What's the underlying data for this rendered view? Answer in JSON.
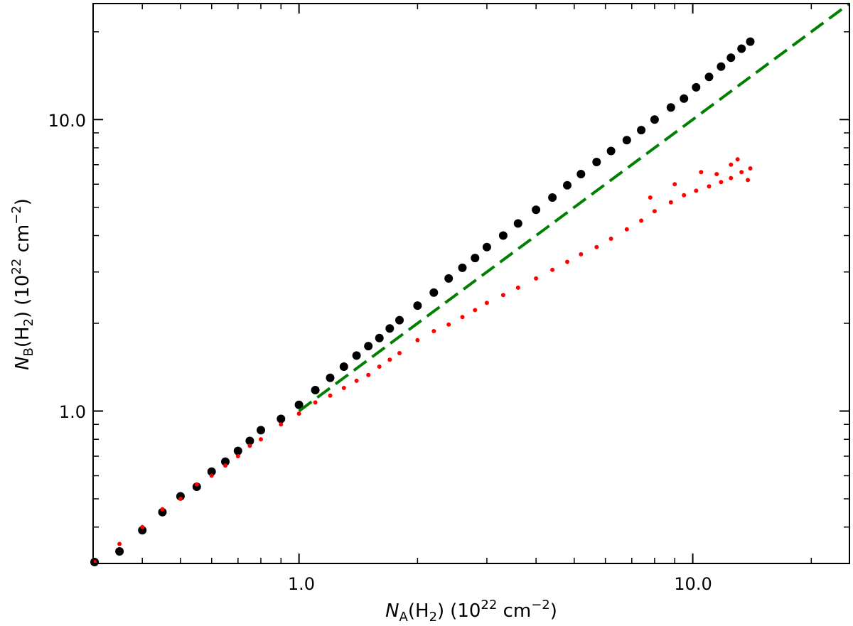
{
  "chart_data": {
    "type": "scatter",
    "x_scale": "log",
    "y_scale": "log",
    "xlim": [
      0.3,
      25
    ],
    "ylim": [
      0.3,
      25
    ],
    "x_major_ticks": [
      1.0,
      10.0
    ],
    "x_tick_labels": [
      "1.0",
      "10.0"
    ],
    "y_major_ticks": [
      1.0,
      10.0
    ],
    "y_tick_labels": [
      "1.0",
      "10.0"
    ],
    "xlabel": {
      "symbol": "N",
      "subscript": "A",
      "species": "(H",
      "species_sub": "2",
      "species_end": ")",
      "unit_open": "(10",
      "unit_exp": "22",
      "unit_mid": " cm",
      "unit_exp2": "−2",
      "unit_close": ")"
    },
    "ylabel": {
      "symbol": "N",
      "subscript": "B",
      "species": "(H",
      "species_sub": "2",
      "species_end": ")",
      "unit_open": "(10",
      "unit_exp": "22",
      "unit_mid": " cm",
      "unit_exp2": "−2",
      "unit_close": ")"
    },
    "grid": false,
    "legend": "none",
    "series": [
      {
        "color": "#000000",
        "marker": "large-circle",
        "points": [
          [
            0.3,
            0.3
          ],
          [
            0.35,
            0.33
          ],
          [
            0.4,
            0.39
          ],
          [
            0.45,
            0.45
          ],
          [
            0.5,
            0.51
          ],
          [
            0.55,
            0.55
          ],
          [
            0.6,
            0.62
          ],
          [
            0.65,
            0.67
          ],
          [
            0.7,
            0.73
          ],
          [
            0.75,
            0.79
          ],
          [
            0.8,
            0.86
          ],
          [
            0.9,
            0.94
          ],
          [
            1.0,
            1.05
          ],
          [
            1.1,
            1.18
          ],
          [
            1.2,
            1.3
          ],
          [
            1.3,
            1.42
          ],
          [
            1.4,
            1.55
          ],
          [
            1.5,
            1.67
          ],
          [
            1.6,
            1.78
          ],
          [
            1.7,
            1.92
          ],
          [
            1.8,
            2.05
          ],
          [
            2.0,
            2.3
          ],
          [
            2.2,
            2.55
          ],
          [
            2.4,
            2.85
          ],
          [
            2.6,
            3.1
          ],
          [
            2.8,
            3.35
          ],
          [
            3.0,
            3.65
          ],
          [
            3.3,
            4.0
          ],
          [
            3.6,
            4.4
          ],
          [
            4.0,
            4.9
          ],
          [
            4.4,
            5.4
          ],
          [
            4.8,
            5.95
          ],
          [
            5.2,
            6.5
          ],
          [
            5.7,
            7.15
          ],
          [
            6.2,
            7.8
          ],
          [
            6.8,
            8.5
          ],
          [
            7.4,
            9.2
          ],
          [
            8.0,
            10.0
          ],
          [
            8.8,
            11.0
          ],
          [
            9.5,
            11.8
          ],
          [
            10.2,
            12.9
          ],
          [
            11.0,
            14.0
          ],
          [
            11.8,
            15.2
          ],
          [
            12.5,
            16.3
          ],
          [
            13.3,
            17.5
          ],
          [
            14.0,
            18.5
          ]
        ]
      },
      {
        "color": "#ff0000",
        "marker": "small-dot",
        "points": [
          [
            0.3,
            0.3
          ],
          [
            0.35,
            0.35
          ],
          [
            0.4,
            0.4
          ],
          [
            0.45,
            0.46
          ],
          [
            0.5,
            0.5
          ],
          [
            0.55,
            0.56
          ],
          [
            0.6,
            0.6
          ],
          [
            0.65,
            0.65
          ],
          [
            0.7,
            0.7
          ],
          [
            0.75,
            0.76
          ],
          [
            0.8,
            0.8
          ],
          [
            0.9,
            0.9
          ],
          [
            1.0,
            0.98
          ],
          [
            1.1,
            1.07
          ],
          [
            1.2,
            1.13
          ],
          [
            1.3,
            1.2
          ],
          [
            1.4,
            1.27
          ],
          [
            1.5,
            1.33
          ],
          [
            1.6,
            1.42
          ],
          [
            1.7,
            1.5
          ],
          [
            1.8,
            1.58
          ],
          [
            2.0,
            1.75
          ],
          [
            2.2,
            1.88
          ],
          [
            2.4,
            1.98
          ],
          [
            2.6,
            2.1
          ],
          [
            2.8,
            2.22
          ],
          [
            3.0,
            2.35
          ],
          [
            3.3,
            2.5
          ],
          [
            3.6,
            2.65
          ],
          [
            4.0,
            2.85
          ],
          [
            4.4,
            3.05
          ],
          [
            4.8,
            3.25
          ],
          [
            5.2,
            3.45
          ],
          [
            5.7,
            3.65
          ],
          [
            6.2,
            3.9
          ],
          [
            6.8,
            4.2
          ],
          [
            7.4,
            4.5
          ],
          [
            8.0,
            4.85
          ],
          [
            8.8,
            5.2
          ],
          [
            9.5,
            5.5
          ],
          [
            10.2,
            5.7
          ],
          [
            11.0,
            5.9
          ],
          [
            11.8,
            6.1
          ],
          [
            12.5,
            6.3
          ],
          [
            13.3,
            6.6
          ],
          [
            14.0,
            6.8
          ],
          [
            13.0,
            7.3
          ],
          [
            12.5,
            7.0
          ],
          [
            10.5,
            6.6
          ],
          [
            9.0,
            6.0
          ],
          [
            7.8,
            5.4
          ],
          [
            11.5,
            6.5
          ],
          [
            13.8,
            6.2
          ]
        ]
      }
    ],
    "reference_line": {
      "color": "#008000",
      "style": "dashed",
      "slope": 1,
      "x_range": [
        1.0,
        25
      ]
    }
  }
}
